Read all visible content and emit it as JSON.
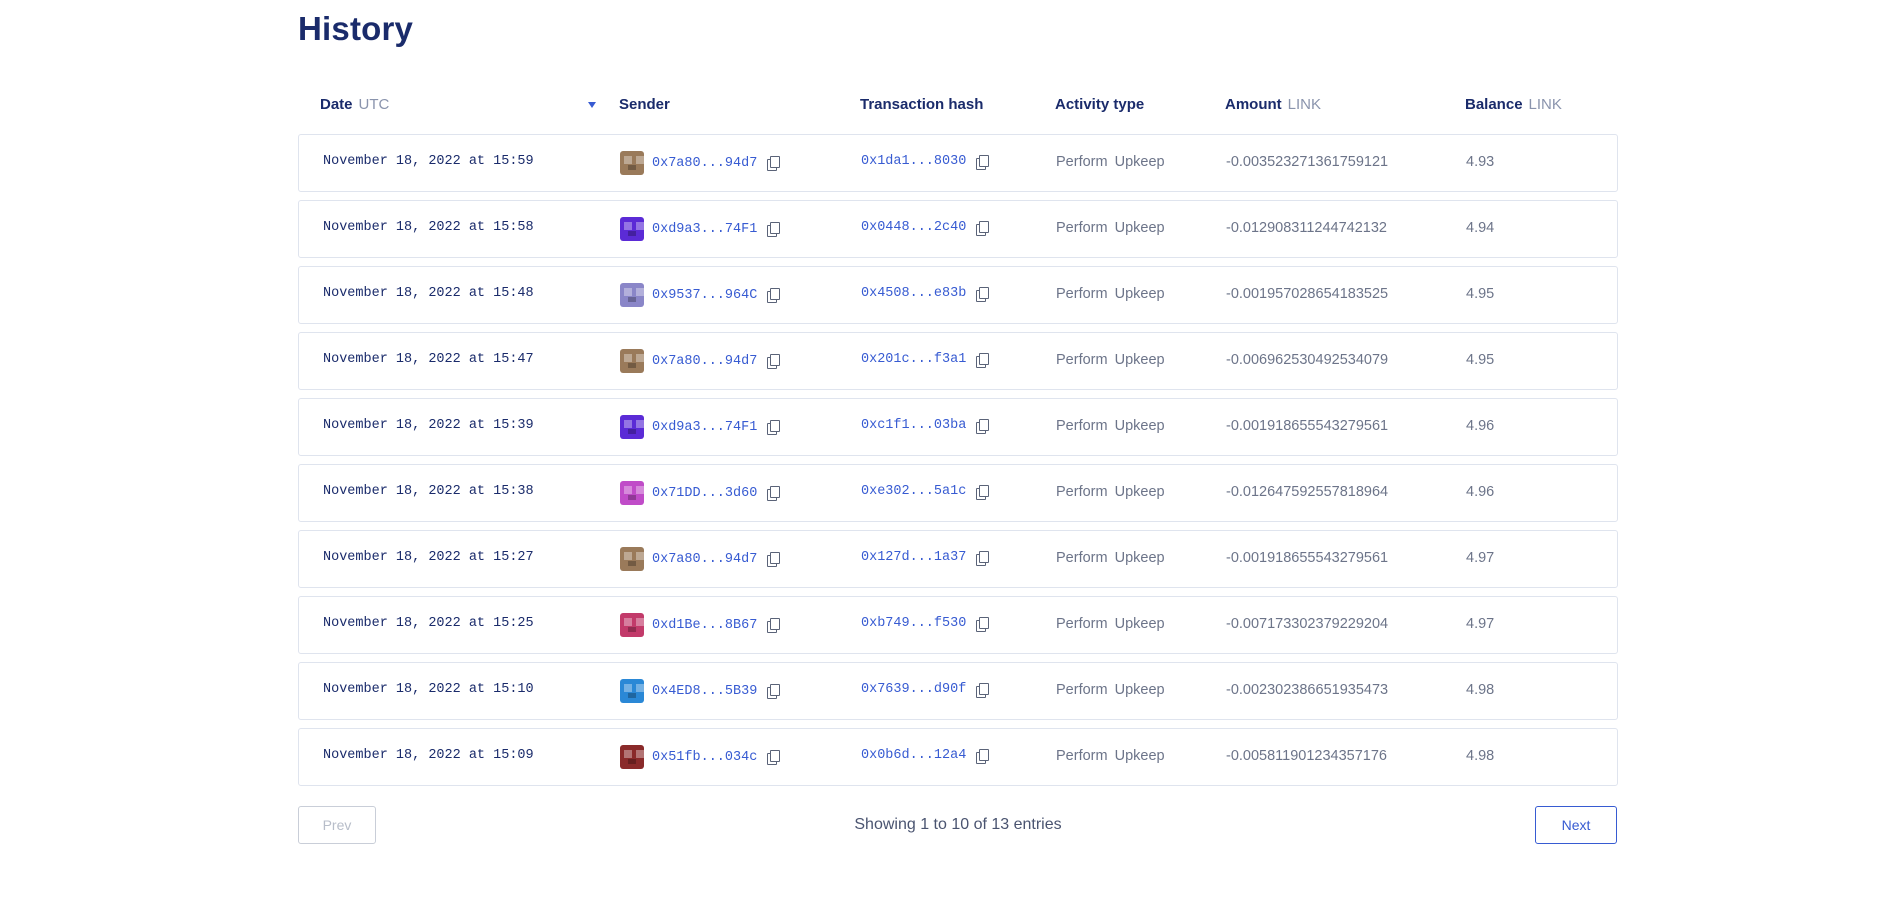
{
  "page": {
    "title": "History"
  },
  "table": {
    "headers": {
      "date": "Date",
      "date_unit": "UTC",
      "sender": "Sender",
      "tx": "Transaction hash",
      "activity": "Activity type",
      "amount": "Amount",
      "amount_unit": "LINK",
      "balance": "Balance",
      "balance_unit": "LINK"
    },
    "rows": [
      {
        "date": "November 18, 2022 at 15:59",
        "sender": "0x7a80...94d7",
        "avatar": "#9a7a5a",
        "tx": "0x1da1...8030",
        "activity": "Perform Upkeep",
        "amount": "-0.003523271361759121",
        "balance": "4.93"
      },
      {
        "date": "November 18, 2022 at 15:58",
        "sender": "0xd9a3...74F1",
        "avatar": "#5b2bd6",
        "tx": "0x0448...2c40",
        "activity": "Perform Upkeep",
        "amount": "-0.012908311244742132",
        "balance": "4.94"
      },
      {
        "date": "November 18, 2022 at 15:48",
        "sender": "0x9537...964C",
        "avatar": "#8a86c8",
        "tx": "0x4508...e83b",
        "activity": "Perform Upkeep",
        "amount": "-0.001957028654183525",
        "balance": "4.95"
      },
      {
        "date": "November 18, 2022 at 15:47",
        "sender": "0x7a80...94d7",
        "avatar": "#9a7a5a",
        "tx": "0x201c...f3a1",
        "activity": "Perform Upkeep",
        "amount": "-0.006962530492534079",
        "balance": "4.95"
      },
      {
        "date": "November 18, 2022 at 15:39",
        "sender": "0xd9a3...74F1",
        "avatar": "#5b2bd6",
        "tx": "0xc1f1...03ba",
        "activity": "Perform Upkeep",
        "amount": "-0.001918655543279561",
        "balance": "4.96"
      },
      {
        "date": "November 18, 2022 at 15:38",
        "sender": "0x71DD...3d60",
        "avatar": "#c04cc8",
        "tx": "0xe302...5a1c",
        "activity": "Perform Upkeep",
        "amount": "-0.012647592557818964",
        "balance": "4.96"
      },
      {
        "date": "November 18, 2022 at 15:27",
        "sender": "0x7a80...94d7",
        "avatar": "#9a7a5a",
        "tx": "0x127d...1a37",
        "activity": "Perform Upkeep",
        "amount": "-0.001918655543279561",
        "balance": "4.97"
      },
      {
        "date": "November 18, 2022 at 15:25",
        "sender": "0xd1Be...8B67",
        "avatar": "#c23a6a",
        "tx": "0xb749...f530",
        "activity": "Perform Upkeep",
        "amount": "-0.007173302379229204",
        "balance": "4.97"
      },
      {
        "date": "November 18, 2022 at 15:10",
        "sender": "0x4ED8...5B39",
        "avatar": "#2a88d6",
        "tx": "0x7639...d90f",
        "activity": "Perform Upkeep",
        "amount": "-0.002302386651935473",
        "balance": "4.98"
      },
      {
        "date": "November 18, 2022 at 15:09",
        "sender": "0x51fb...034c",
        "avatar": "#8a2a2a",
        "tx": "0x0b6d...12a4",
        "activity": "Perform Upkeep",
        "amount": "-0.005811901234357176",
        "balance": "4.98"
      }
    ]
  },
  "pagination": {
    "prev_label": "Prev",
    "next_label": "Next",
    "showing": "Showing 1 to 10 of 13 entries"
  },
  "colors": {
    "accent": "#375bd2",
    "heading": "#1a2b6b",
    "muted": "#6c7489",
    "border": "#dfe4ee"
  }
}
